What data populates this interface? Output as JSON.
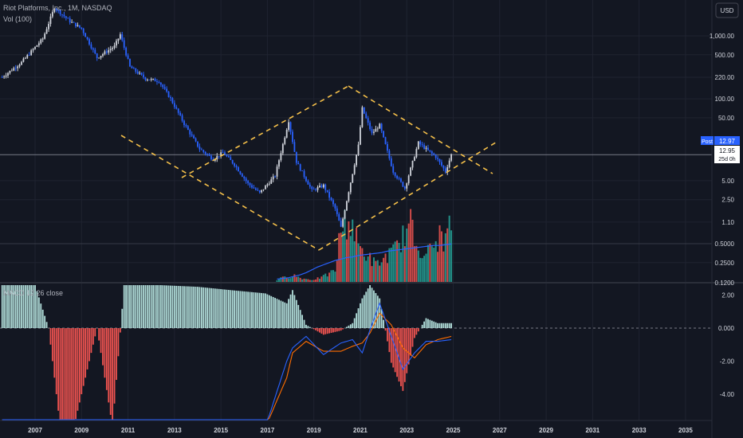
{
  "header": {
    "title": "Riot Platforms, Inc., 1M, NASDAQ",
    "volume_label": "Vol (100)",
    "macd_label": "MACD 12 26 close"
  },
  "currency_button": {
    "label": "USD"
  },
  "price_tags": {
    "post_label": "Post",
    "post_price": "12.97",
    "last_price": "12.95",
    "countdown": "25d 0h"
  },
  "colors": {
    "background": "#131722",
    "grid": "#1f2330",
    "candle_up": "#d1d4dc",
    "candle_down": "#2962ff",
    "volume_up": "#26a69a",
    "volume_down": "#ef5350",
    "trendline": "#f5c04a",
    "macd_line": "#2962ff",
    "signal_line": "#ff6d00",
    "hist_pos": "#b2dfdb",
    "hist_neg": "#ef5350",
    "volume_ma": "#2962ff"
  },
  "chart_data": [
    {
      "type": "line",
      "name": "price",
      "scale": "log",
      "x_axis": {
        "type": "date",
        "range": [
          "2005-06",
          "2035-12"
        ],
        "tick_labels": [
          "2007",
          "2009",
          "2011",
          "2013",
          "2015",
          "2017",
          "2019",
          "2021",
          "2023",
          "2025",
          "2027",
          "2029",
          "2031",
          "2033",
          "2035"
        ]
      },
      "y_axis": {
        "scale": "log",
        "range": [
          0.1,
          3000
        ],
        "tick_labels": [
          "1,000.00",
          "500.00",
          "220.00",
          "100.00",
          "50.00",
          "12.97",
          "5.00",
          "2.50",
          "1.10",
          "0.5000",
          "0.2500",
          "0.1200"
        ]
      },
      "x": [
        "2005-08",
        "2006-06",
        "2007-05",
        "2007-11",
        "2008-07",
        "2009-01",
        "2009-09",
        "2010-06",
        "2010-09",
        "2011-02",
        "2011-10",
        "2012-05",
        "2012-11",
        "2013-06",
        "2014-02",
        "2014-09",
        "2015-02",
        "2015-08",
        "2016-03",
        "2016-09",
        "2017-05",
        "2017-12",
        "2018-04",
        "2018-12",
        "2019-06",
        "2019-12",
        "2020-03",
        "2020-12",
        "2021-02",
        "2021-07",
        "2021-11",
        "2022-06",
        "2022-12",
        "2023-07",
        "2023-12",
        "2024-04",
        "2024-09",
        "2024-12"
      ],
      "values": [
        220,
        380,
        900,
        2800,
        1700,
        1300,
        450,
        680,
        1050,
        320,
        210,
        190,
        100,
        40,
        16,
        11,
        14,
        9,
        4.5,
        3.2,
        6,
        45,
        10,
        3.5,
        4.2,
        1.8,
        0.9,
        18,
        70,
        28,
        38,
        7,
        3.8,
        20,
        15,
        12,
        7,
        12.95
      ],
      "grid": true
    },
    {
      "type": "bar",
      "name": "volume",
      "x_range": [
        "2017-06",
        "2024-12"
      ],
      "values": [
        0.05,
        0.08,
        0.1,
        0.12,
        0.08,
        0.06,
        0.05,
        0.07,
        0.1,
        0.15,
        0.2,
        0.9,
        1.0,
        0.95,
        0.6,
        0.5,
        0.4,
        0.3,
        0.35,
        0.45,
        0.5,
        0.65,
        0.8,
        0.95,
        0.6,
        0.55,
        0.5,
        0.6,
        0.75,
        0.7,
        1.0
      ],
      "moving_average": [
        0.05,
        0.06,
        0.07,
        0.09,
        0.11,
        0.14,
        0.18,
        0.22,
        0.25,
        0.28,
        0.31,
        0.33,
        0.35,
        0.36,
        0.38,
        0.39,
        0.4,
        0.41,
        0.42,
        0.44,
        0.45,
        0.46,
        0.47,
        0.48,
        0.49,
        0.5,
        0.51,
        0.52,
        0.52,
        0.53,
        0.54
      ]
    },
    {
      "type": "bar",
      "name": "MACD 12 26 close",
      "y_axis": {
        "range": [
          -5,
          2.6
        ],
        "tick_labels": [
          "2.00",
          "0.000",
          "-2.00",
          "-4.00"
        ]
      },
      "x": [
        "2005-08",
        "2007-01",
        "2007-08",
        "2008-02",
        "2008-09",
        "2009-09",
        "2010-05",
        "2010-11",
        "2011-04",
        "2012-06",
        "2014-01",
        "2015-06",
        "2016-12",
        "2017-11",
        "2018-02",
        "2018-09",
        "2019-06",
        "2020-03",
        "2020-09",
        "2021-02",
        "2021-06",
        "2021-11",
        "2022-05",
        "2022-11",
        "2023-05",
        "2023-11",
        "2024-05",
        "2024-12"
      ],
      "values": [
        2.6,
        2.6,
        0,
        -6,
        -6,
        0,
        -6,
        2.6,
        2.6,
        2.6,
        2.5,
        2.3,
        2.1,
        1.5,
        2.3,
        0.2,
        -0.4,
        -0.15,
        0.3,
        1.8,
        2.6,
        1.8,
        -2.1,
        -3.8,
        -0.6,
        0.6,
        0.3,
        0.3
      ],
      "macd_line": [
        -6,
        -6,
        -6,
        -6,
        -6,
        -6,
        -6,
        -6,
        -6,
        -6,
        -6,
        -6,
        -6,
        -2,
        -1.2,
        -0.5,
        -1.6,
        -0.9,
        -0.7,
        -1.5,
        -0.1,
        1.5,
        -0.5,
        -2.5,
        -1.5,
        -0.8,
        -0.8,
        -0.7
      ],
      "signal_line": [
        -6,
        -6,
        -6,
        -6,
        -6,
        -6,
        -6,
        -6,
        -6,
        -6,
        -6,
        -6,
        -6,
        -3,
        -1.5,
        -0.8,
        -1.4,
        -1.4,
        -1.1,
        -0.9,
        -0.3,
        0.9,
        0.2,
        -1.2,
        -1.8,
        -1.0,
        -0.7,
        -0.5
      ]
    }
  ]
}
